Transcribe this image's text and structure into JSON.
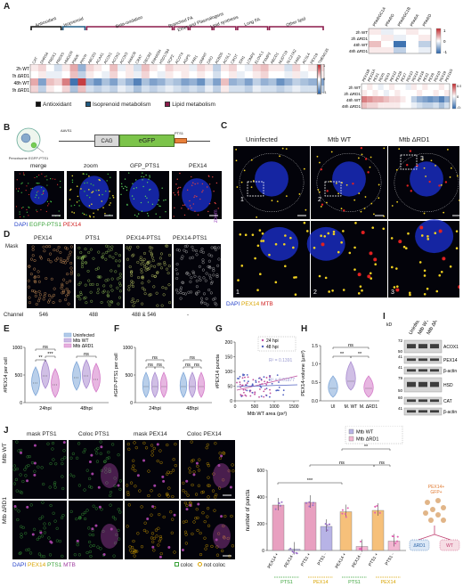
{
  "panelA": {
    "letter": "A",
    "categories": [
      "Antioxidant",
      "Isoprenoid",
      "Beta-oxidation",
      "Branched FA",
      "Ether and Plasmalogens",
      "Lipid synthesis",
      "Long FA",
      "Other lipid"
    ],
    "genes": [
      "CAT",
      "DHRS4",
      "PRDX1",
      "PRDX5",
      "HMGCR",
      "PMVK",
      "PHYH",
      "ABCD3",
      "ACAA1",
      "ACOX1",
      "ACOX2",
      "ACOX3",
      "AMACR",
      "CRAT",
      "DECR2",
      "EHHADH",
      "HSD17B4",
      "SCP2",
      "ACOT4",
      "AGPS",
      "FAR1",
      "GNPAT",
      "DAO",
      "ACBD5",
      "ACSL1",
      "CROT",
      "IDH1",
      "LONP2",
      "ELOVL1",
      "PXMP2",
      "ABCD1",
      "NUDT19",
      "SLC27A2",
      "FAR2",
      "ACSL4",
      "PEX19",
      "TMEM135"
    ],
    "rows": [
      "2h WT",
      "2h ΔRD1",
      "48h WT",
      "48h ΔRD1"
    ],
    "legend_title": "",
    "scale_ticks": [
      "1",
      "0",
      "-1"
    ],
    "legend_items": [
      "Antioxidant",
      "Isoprenoid metabolism",
      "Lipid metabolism"
    ],
    "legend_colors": [
      "#111111",
      "#1f5a82",
      "#8b1a4a"
    ],
    "ppar_genes": [
      "PPARGC1A",
      "PPARG",
      "PPARGC1B",
      "PPARA",
      "PPARD"
    ],
    "ppar_scale": [
      "1",
      "0",
      "-1"
    ],
    "pex_genes": [
      "PEX11B",
      "PEX11A",
      "PEX1",
      "PEX5",
      "PEX3",
      "PEX12",
      "PEX26",
      "PEX7",
      "PEX13",
      "PEX14",
      "PEX16",
      "PEX2",
      "PEX6",
      "PEX10",
      "PEX19",
      "PEX11G"
    ],
    "pex_scale": [
      "0.5",
      "0",
      "-0.5"
    ]
  },
  "panelB": {
    "letter": "B",
    "diagram_label": "Peroxisome EGFP-PTS1",
    "construct": [
      "AAVS1",
      "CAG",
      "eGFP",
      "PTS1"
    ],
    "image_titles": [
      "merge",
      "zoom",
      "GFP_PTS1",
      "PEX14"
    ],
    "caption_dapi": "DAPI",
    "caption_egfp": "EGFP-PTS1",
    "caption_pex14": "PEX14"
  },
  "panelC": {
    "letter": "C",
    "titles": [
      "Uninfected",
      "Mtb WT",
      "Mtb ΔRD1"
    ],
    "zoom_label": "zoom",
    "inset_numbers": [
      "1",
      "2",
      "3"
    ],
    "caption_dapi": "DAPI",
    "caption_pex14": "PEX14",
    "caption_mtb": "MTB"
  },
  "panelD": {
    "letter": "D",
    "mask_label": "Mask",
    "channel_label": "Channel",
    "titles": [
      "PEX14",
      "PTS1",
      "PEX14-PTS1",
      "PEX14-PTS1"
    ],
    "channels": [
      "546",
      "488",
      "488 & 546",
      "-"
    ]
  },
  "panelE": {
    "letter": "E",
    "ylabel": "#PEX14 per cell",
    "yticks": [
      "0",
      "500",
      "1000"
    ],
    "xgroups": [
      "24hpi",
      "48hpi"
    ],
    "legend": [
      "Uninfected",
      "Mtb WT",
      "Mtb ΔRD1"
    ],
    "sig": [
      "**",
      "***",
      "ns",
      "ns"
    ]
  },
  "panelF": {
    "letter": "F",
    "ylabel": "#GFP-PTS1 per cell",
    "yticks": [
      "0",
      "500",
      "1000"
    ],
    "xgroups": [
      "24hpi",
      "48hpi"
    ],
    "sig": [
      "ns",
      "ns",
      "ns",
      "ns",
      "ns",
      "ns"
    ]
  },
  "panelG": {
    "letter": "G",
    "ylabel": "#PEX14 puncta",
    "xlabel": "Mtb WT area (px²)",
    "xticks": [
      "0",
      "500",
      "1000",
      "1500"
    ],
    "yticks": [
      "0",
      "50",
      "100",
      "150",
      "200"
    ],
    "legend": [
      "24 hpi",
      "48 hpi"
    ],
    "r2_24": "R² = 0.1391",
    "r2_48": "R² = 0.01877"
  },
  "panelH": {
    "letter": "H",
    "ylabel": "PEX14-volume (µm³)",
    "yticks": [
      "0.0",
      "0.5",
      "1.0",
      "1.5"
    ],
    "xgroups": [
      "UI",
      "M. WT",
      "M. ΔRD1"
    ],
    "sig": [
      "ns",
      "**",
      "**"
    ]
  },
  "panelI": {
    "letter": "I",
    "kd_label": "kD",
    "lanes": [
      "Uninfected",
      "Mtb WT",
      "Mtb ΔRD1"
    ],
    "bands": [
      {
        "name": "ACOX1",
        "kd": [
          "72",
          "50"
        ]
      },
      {
        "name": "PEX14",
        "kd": [
          "41"
        ]
      },
      {
        "name": "β-actin",
        "kd": [
          "41"
        ]
      },
      {
        "name": "HSD",
        "kd": [
          "79",
          "50"
        ]
      },
      {
        "name": "CAT",
        "kd": [
          "60"
        ]
      },
      {
        "name": "β-actin",
        "kd": [
          "41"
        ]
      }
    ]
  },
  "panelJ": {
    "letter": "J",
    "titles": [
      "mask PTS1",
      "Coloc PTS1",
      "mask PEX14",
      "Coloc PEX14"
    ],
    "rows": [
      "Mtb WT",
      "Mtb ΔRD1"
    ],
    "caption": [
      "DAPI",
      "PEX14",
      "PTS1",
      "MTB"
    ],
    "coloc_legend": [
      "coloc",
      "not coloc"
    ],
    "chart_legend": [
      "Mtb WT",
      "Mtb ΔRD1"
    ],
    "ylabel": "number of puncta",
    "yticks": [
      "0",
      "200",
      "400",
      "600"
    ],
    "xlabels": [
      "PEX14 +",
      "PEX14 -",
      "PTS1 +",
      "PTS1 -",
      "PEX14 +",
      "PEX14 -",
      "PTS1 +",
      "PTS1 -"
    ],
    "group_labels": [
      "PTS1",
      "PEX14",
      "PTS1",
      "PEX14"
    ],
    "sig": [
      "***",
      "ns",
      "**",
      "ns"
    ],
    "model_labels": [
      "PEX14+",
      "GFP+",
      "ΔRD1",
      "WT"
    ]
  },
  "colors": {
    "uninfected": "#7fa7d8",
    "wt": "#a98bd0",
    "rd1": "#d47ac8",
    "bar_wt": "#e8a0c0",
    "bar_rd1": "#f6c07a",
    "heat_pos": "#c0282d",
    "heat_neg": "#2a63a8"
  },
  "chart_data": [
    {
      "type": "bar",
      "categories": [
        "PEX14 + (PTS1)",
        "PEX14 - (PTS1)",
        "PTS1 + (PEX14)",
        "PTS1 - (PEX14)"
      ],
      "series": [
        {
          "name": "Mtb WT",
          "values": [
            340,
            10,
            360,
            180
          ]
        },
        {
          "name": "Mtb ΔRD1",
          "values": [
            290,
            30,
            300,
            70
          ]
        }
      ],
      "ylabel": "number of puncta",
      "ylim": [
        0,
        600
      ]
    }
  ]
}
